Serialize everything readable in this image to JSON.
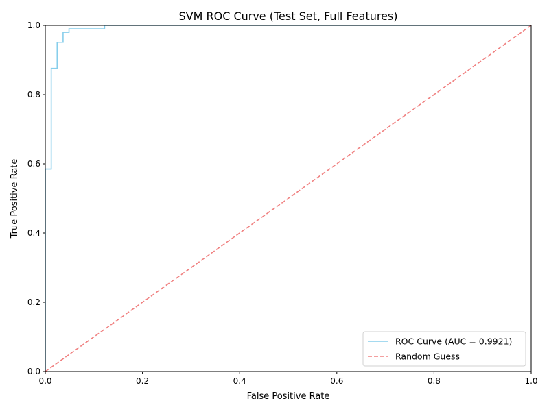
{
  "chart_data": {
    "type": "line",
    "title": "SVM ROC Curve (Test Set, Full Features)",
    "xlabel": "False Positive Rate",
    "ylabel": "True Positive Rate",
    "xlim": [
      0,
      1
    ],
    "ylim": [
      0,
      1
    ],
    "x_ticks": [
      "0.0",
      "0.2",
      "0.4",
      "0.6",
      "0.8",
      "1.0"
    ],
    "y_ticks": [
      "0.0",
      "0.2",
      "0.4",
      "0.6",
      "0.8",
      "1.0"
    ],
    "grid": false,
    "legend_position": "lower-right",
    "series": [
      {
        "name": "ROC Curve (AUC = 0.9921)",
        "color": "#87ceeb",
        "style": "solid",
        "step": true,
        "x": [
          0.0,
          0.0,
          0.0122,
          0.0122,
          0.0244,
          0.0244,
          0.0366,
          0.0366,
          0.0488,
          0.0488,
          0.122,
          0.122,
          1.0
        ],
        "y": [
          0.0,
          0.585,
          0.585,
          0.876,
          0.876,
          0.951,
          0.951,
          0.98,
          0.98,
          0.99,
          0.99,
          1.0,
          1.0
        ]
      },
      {
        "name": "Random Guess",
        "color": "#f08080",
        "style": "dashed",
        "step": false,
        "x": [
          0.0,
          1.0
        ],
        "y": [
          0.0,
          1.0
        ]
      }
    ]
  }
}
